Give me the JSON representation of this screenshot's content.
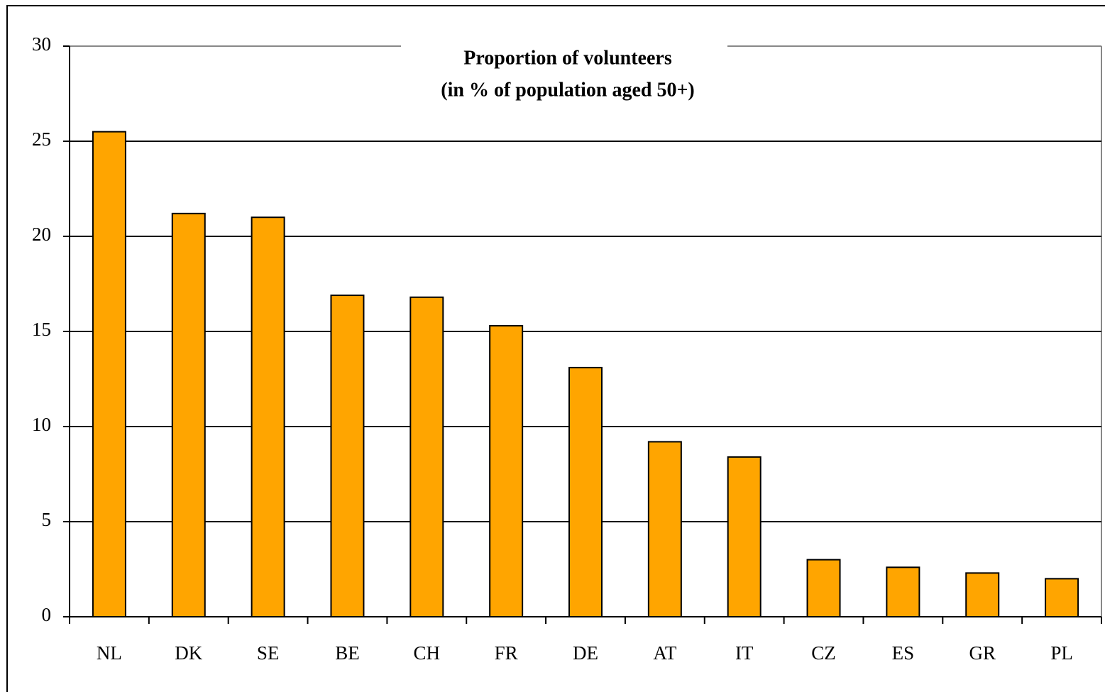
{
  "chart_data": {
    "type": "bar",
    "title": "Proportion of volunteers",
    "subtitle": "(in % of population aged 50+)",
    "categories": [
      "NL",
      "DK",
      "SE",
      "BE",
      "CH",
      "FR",
      "DE",
      "AT",
      "IT",
      "CZ",
      "ES",
      "GR",
      "PL"
    ],
    "values": [
      25.5,
      21.2,
      21.0,
      16.9,
      16.8,
      15.3,
      13.1,
      9.2,
      8.4,
      3.0,
      2.6,
      2.3,
      2.0
    ],
    "color": "#ffa500",
    "ylim": [
      0,
      30
    ],
    "yticks": [
      0,
      5,
      10,
      15,
      20,
      25,
      30
    ],
    "grid": true
  }
}
